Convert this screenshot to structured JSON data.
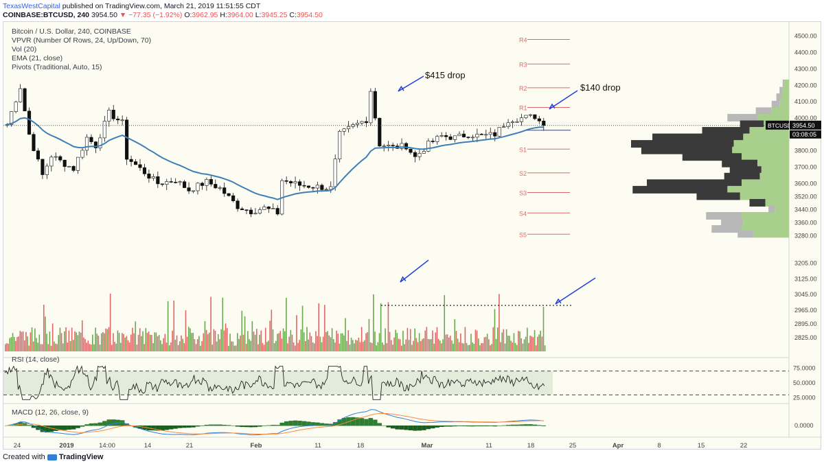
{
  "header": {
    "author": "TexasWestCapital",
    "published": "published on TradingView.com, March 21, 2019 11:51:55 CDT",
    "symbol": "COINBASE:BTCUSD, 240",
    "last": "3954.50",
    "change_arrow": "▼",
    "change": "−77.35 (−1.92%)",
    "o_label": "O:",
    "o": "3962.95",
    "h_label": "H:",
    "h": "3964.00",
    "l_label": "L:",
    "l": "3945.25",
    "c_label": "C:",
    "c": "3954.50"
  },
  "legend": {
    "title": "Bitcoin / U.S. Dollar, 240, COINBASE",
    "vpvr": "VPVR (Number Of Rows, 24, Up/Down, 70)",
    "vol": "Vol (20)",
    "ema": "EMA (21, close)",
    "pivots": "Pivots (Traditional, Auto, 15)",
    "rsi": "RSI (14, close)",
    "macd": "MACD (12, 26, close, 9)"
  },
  "annotations": {
    "drop1": "$415 drop",
    "drop2": "$140 drop"
  },
  "price_badge": {
    "symbol": "BTCUSD",
    "price": "3954.50",
    "countdown": "03:08:05"
  },
  "footer": {
    "created": "Created with",
    "brand": "TradingView"
  },
  "colors": {
    "up": "#6aa84f",
    "down": "#e06666",
    "ema": "#3d7fb5",
    "pivot": "#e06666",
    "arrow": "#1f3de0",
    "rsi": "#222222",
    "macd": "#2f7fd8",
    "signal": "#ff8a3d",
    "vpvr_up": "#a9cf8d",
    "vpvr_down": "#3a3a3a"
  },
  "chart_data": {
    "type": "candlestick",
    "price_axis": [
      "4500.00",
      "4400.00",
      "4300.00",
      "4200.00",
      "4100.00",
      "4000.00",
      "3900.00",
      "3800.00",
      "3700.00",
      "3600.00",
      "3520.00",
      "3440.00",
      "3360.00",
      "3280.00",
      "3205.00",
      "3125.00",
      "3045.00",
      "2965.00",
      "2895.00",
      "2825.00"
    ],
    "rsi_axis": [
      "75.0000",
      "50.0000",
      "25.0000"
    ],
    "macd_axis": [
      "0.0000"
    ],
    "time_axis": [
      "24",
      "2019",
      "14:00",
      "14",
      "21",
      "Feb",
      "11",
      "18",
      "Mar",
      "11",
      "18",
      "25",
      "Apr",
      "8",
      "15",
      "22"
    ],
    "ylim": [
      3250,
      4550
    ],
    "price_path": [
      [
        0,
        3960
      ],
      [
        3,
        4190
      ],
      [
        5,
        3900
      ],
      [
        8,
        3650
      ],
      [
        10,
        3770
      ],
      [
        13,
        3720
      ],
      [
        15,
        3690
      ],
      [
        18,
        3880
      ],
      [
        20,
        3830
      ],
      [
        23,
        4030
      ],
      [
        26,
        3970
      ],
      [
        27,
        3760
      ],
      [
        30,
        3690
      ],
      [
        34,
        3600
      ],
      [
        38,
        3620
      ],
      [
        41,
        3560
      ],
      [
        45,
        3610
      ],
      [
        48,
        3570
      ],
      [
        52,
        3460
      ],
      [
        55,
        3430
      ],
      [
        58,
        3450
      ],
      [
        61,
        3420
      ],
      [
        62,
        3620
      ],
      [
        66,
        3590
      ],
      [
        70,
        3580
      ],
      [
        73,
        3570
      ],
      [
        75,
        3900
      ],
      [
        78,
        3950
      ],
      [
        81,
        3990
      ],
      [
        82,
        4170
      ],
      [
        84,
        3840
      ],
      [
        87,
        3820
      ],
      [
        90,
        3830
      ],
      [
        92,
        3760
      ],
      [
        95,
        3840
      ],
      [
        98,
        3890
      ],
      [
        101,
        3880
      ],
      [
        104,
        3900
      ],
      [
        107,
        3890
      ],
      [
        110,
        3900
      ],
      [
        113,
        3990
      ],
      [
        116,
        4000
      ],
      [
        119,
        4010
      ],
      [
        121,
        3954
      ]
    ],
    "pivots": [
      {
        "name": "R4",
        "value": 4480
      },
      {
        "name": "R3",
        "value": 4330
      },
      {
        "name": "R2",
        "value": 4185
      },
      {
        "name": "R1",
        "value": 4065
      },
      {
        "name": "S1",
        "value": 3810
      },
      {
        "name": "S2",
        "value": 3665
      },
      {
        "name": "S3",
        "value": 3545
      },
      {
        "name": "S4",
        "value": 3420
      },
      {
        "name": "S5",
        "value": 3290
      }
    ],
    "marker_price": 3954.5,
    "rsi_levels": [
      70,
      30
    ],
    "vpvr": [
      {
        "price": 4210,
        "up": 6,
        "down": 2
      },
      {
        "price": 4165,
        "up": 8,
        "down": 4
      },
      {
        "price": 4125,
        "up": 10,
        "down": 6
      },
      {
        "price": 4080,
        "up": 12,
        "down": 10
      },
      {
        "price": 4040,
        "up": 22,
        "down": 20
      },
      {
        "price": 4000,
        "up": 40,
        "down": 38
      },
      {
        "price": 3960,
        "up": 32,
        "down": 30
      },
      {
        "price": 3920,
        "up": 50,
        "down": 60
      },
      {
        "price": 3880,
        "up": 58,
        "down": 115
      },
      {
        "price": 3840,
        "up": 70,
        "down": 130
      },
      {
        "price": 3800,
        "up": 72,
        "down": 115
      },
      {
        "price": 3760,
        "up": 60,
        "down": 75
      },
      {
        "price": 3720,
        "up": 40,
        "down": 45
      },
      {
        "price": 3680,
        "up": 35,
        "down": 40
      },
      {
        "price": 3640,
        "up": 37,
        "down": 45
      },
      {
        "price": 3600,
        "up": 60,
        "down": 120
      },
      {
        "price": 3560,
        "up": 78,
        "down": 120
      },
      {
        "price": 3520,
        "up": 62,
        "down": 55
      },
      {
        "price": 3480,
        "up": 30,
        "down": 20
      },
      {
        "price": 3440,
        "up": 18,
        "down": 8
      },
      {
        "price": 3400,
        "up": 60,
        "down": 45
      },
      {
        "price": 3360,
        "up": 58,
        "down": 28
      },
      {
        "price": 3320,
        "up": 60,
        "down": 38
      },
      {
        "price": 3290,
        "up": 45,
        "down": 20
      }
    ]
  }
}
